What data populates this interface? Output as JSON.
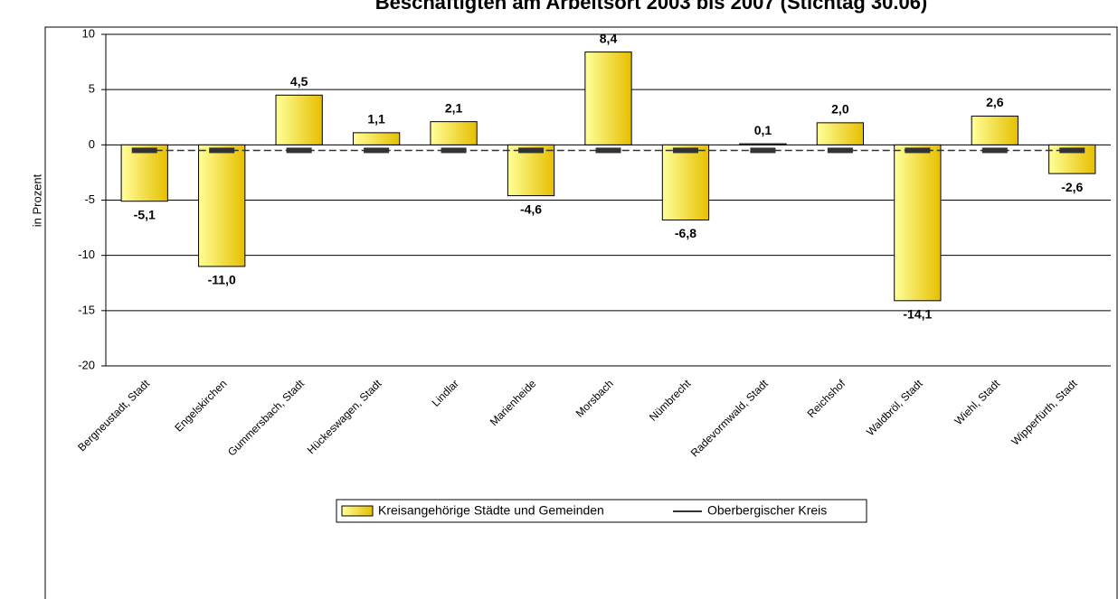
{
  "chart_data": {
    "type": "bar",
    "title": "Beschäftigten am Arbeitsort 2003 bis 2007 (Stichtag 30.06)",
    "y_label": "in Prozent",
    "categories": [
      "Bergneustadt, Stadt",
      "Engelskirchen",
      "Gummersbach, Stadt",
      "Hückeswagen, Stadt",
      "Lindlar",
      "Marienheide",
      "Morsbach",
      "Nümbrecht",
      "Radevormwald, Stadt",
      "Reichshof",
      "Waldbröl, Stadt",
      "Wiehl, Stadt",
      "Wipperfürth, Stadt"
    ],
    "series": [
      {
        "name": "Kreisangehörige Städte und Gemeinden",
        "color": "#f2d21a",
        "values": [
          -5.1,
          -11.0,
          4.5,
          1.1,
          2.1,
          -4.6,
          8.4,
          -6.8,
          0.1,
          2.0,
          -14.1,
          2.6,
          -2.6
        ],
        "value_labels": [
          "-5,1",
          "-11,0",
          "4,5",
          "1,1",
          "2,1",
          "-4,6",
          "8,4",
          "-6,8",
          "0,1",
          "2,0",
          "-14,1",
          "2,6",
          "-2,6"
        ]
      },
      {
        "name": "Oberbergischer Kreis",
        "color": "#333333",
        "values": [
          -0.5,
          -0.5,
          -0.5,
          -0.5,
          -0.5,
          -0.5,
          -0.5,
          -0.5,
          -0.5,
          -0.5,
          -0.5,
          -0.5,
          -0.5
        ]
      }
    ],
    "ylim": [
      -20,
      10
    ],
    "yticks": [
      -20,
      -15,
      -10,
      -5,
      0,
      5,
      10
    ],
    "grid": true
  }
}
